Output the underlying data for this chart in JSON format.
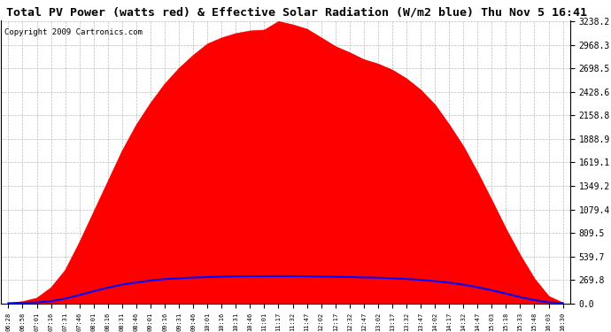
{
  "title": "Total PV Power (watts red) & Effective Solar Radiation (W/m2 blue) Thu Nov 5 16:41",
  "copyright": "Copyright 2009 Cartronics.com",
  "y_ticks": [
    0.0,
    269.8,
    539.7,
    809.5,
    1079.4,
    1349.2,
    1619.1,
    1888.9,
    2158.8,
    2428.6,
    2698.5,
    2968.3,
    3238.2
  ],
  "y_max": 3238.2,
  "x_labels": [
    "06:28",
    "06:58",
    "07:01",
    "07:16",
    "07:31",
    "07:46",
    "08:01",
    "08:16",
    "08:31",
    "08:46",
    "09:01",
    "09:16",
    "09:31",
    "09:46",
    "10:01",
    "10:16",
    "10:31",
    "10:46",
    "11:01",
    "11:17",
    "11:32",
    "11:47",
    "12:02",
    "12:17",
    "12:32",
    "12:47",
    "13:02",
    "13:17",
    "13:32",
    "13:47",
    "14:02",
    "14:17",
    "14:32",
    "14:47",
    "15:03",
    "15:18",
    "15:33",
    "15:48",
    "16:03",
    "16:30"
  ],
  "bg_color": "#ffffff",
  "plot_bg": "#ffffff",
  "grid_color": "#bbbbbb",
  "red_color": "#ff0000",
  "blue_color": "#0000ff",
  "title_fontsize": 9.5,
  "copyright_fontsize": 6.5,
  "pv_values": [
    0,
    20,
    60,
    180,
    380,
    700,
    1050,
    1400,
    1750,
    2050,
    2300,
    2520,
    2700,
    2850,
    2980,
    3050,
    3100,
    3130,
    3140,
    3238,
    3200,
    3150,
    3050,
    2950,
    2880,
    2800,
    2750,
    2680,
    2580,
    2450,
    2280,
    2050,
    1800,
    1500,
    1180,
    850,
    550,
    280,
    80,
    5
  ],
  "solar_values": [
    2,
    5,
    10,
    25,
    55,
    95,
    140,
    180,
    215,
    240,
    262,
    278,
    288,
    296,
    302,
    307,
    310,
    311,
    312,
    313,
    312,
    310,
    308,
    305,
    302,
    298,
    294,
    288,
    280,
    270,
    255,
    238,
    215,
    185,
    150,
    112,
    72,
    38,
    12,
    2
  ]
}
